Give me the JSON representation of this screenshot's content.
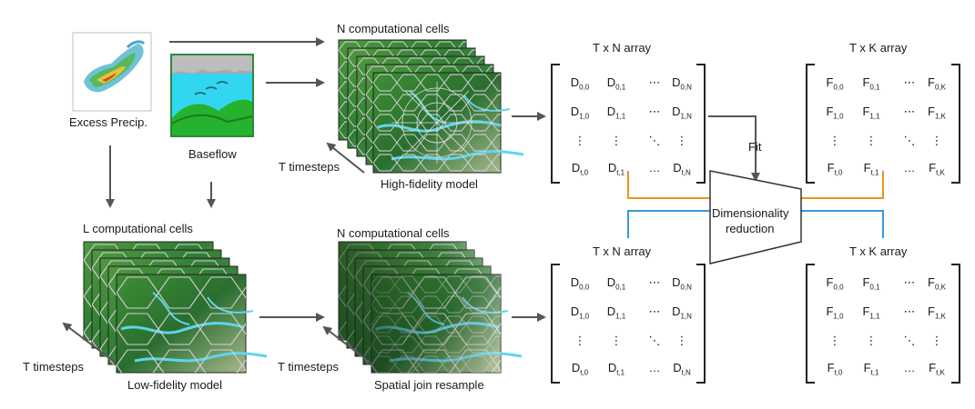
{
  "labels": {
    "excess_precip": "Excess Precip.",
    "baseflow": "Baseflow",
    "n_cells_top": "N computational cells",
    "high_fidelity": "High-fidelity model",
    "t_timesteps_top": "T timesteps",
    "l_cells": "L computational cells",
    "t_timesteps_low": "T timesteps",
    "low_fidelity": "Low-fidelity model",
    "n_cells_bottom": "N computational cells",
    "t_timesteps_resample": "T timesteps",
    "spatial_join": "Spatial join resample",
    "fit": "Fit",
    "dim_reduction_1": "Dimensionality",
    "dim_reduction_2": "reduction"
  },
  "matrices": {
    "tn_top": {
      "title": "T x N array",
      "rows": [
        [
          [
            "D",
            "0,0"
          ],
          [
            "D",
            "0,1"
          ],
          [
            "⋯",
            ""
          ],
          [
            "D",
            "0,N"
          ]
        ],
        [
          [
            "D",
            "1,0"
          ],
          [
            "D",
            "1,1"
          ],
          [
            "⋯",
            ""
          ],
          [
            "D",
            "1,N"
          ]
        ],
        [
          [
            "⋮",
            ""
          ],
          [
            "⋮",
            ""
          ],
          [
            "⋱",
            ""
          ],
          [
            "⋮",
            ""
          ]
        ],
        [
          [
            "D",
            "t,0"
          ],
          [
            "D",
            "t,1"
          ],
          [
            "…",
            ""
          ],
          [
            "D",
            "t,N"
          ]
        ]
      ]
    },
    "tk_top": {
      "title": "T x K array",
      "rows": [
        [
          [
            "F",
            "0,0"
          ],
          [
            "F",
            "0,1"
          ],
          [
            "⋯",
            ""
          ],
          [
            "F",
            "0,K"
          ]
        ],
        [
          [
            "F",
            "1,0"
          ],
          [
            "F",
            "1,1"
          ],
          [
            "⋯",
            ""
          ],
          [
            "F",
            "1,K"
          ]
        ],
        [
          [
            "⋮",
            ""
          ],
          [
            "⋮",
            ""
          ],
          [
            "⋱",
            ""
          ],
          [
            "⋮",
            ""
          ]
        ],
        [
          [
            "F",
            "t,0"
          ],
          [
            "F",
            "t,1"
          ],
          [
            "…",
            ""
          ],
          [
            "F",
            "t,K"
          ]
        ]
      ]
    },
    "tn_bottom": {
      "title": "T x N array",
      "rows": [
        [
          [
            "D",
            "0,0"
          ],
          [
            "D",
            "0,1"
          ],
          [
            "⋯",
            ""
          ],
          [
            "D",
            "0,N"
          ]
        ],
        [
          [
            "D",
            "1,0"
          ],
          [
            "D",
            "1,1"
          ],
          [
            "⋯",
            ""
          ],
          [
            "D",
            "1,N"
          ]
        ],
        [
          [
            "⋮",
            ""
          ],
          [
            "⋮",
            ""
          ],
          [
            "⋱",
            ""
          ],
          [
            "⋮",
            ""
          ]
        ],
        [
          [
            "D",
            "t,0"
          ],
          [
            "D",
            "t,1"
          ],
          [
            "…",
            ""
          ],
          [
            "D",
            "t,N"
          ]
        ]
      ]
    },
    "tk_bottom": {
      "title": "T x K array",
      "rows": [
        [
          [
            "F",
            "0,0"
          ],
          [
            "F",
            "0,1"
          ],
          [
            "⋯",
            ""
          ],
          [
            "F",
            "0,K"
          ]
        ],
        [
          [
            "F",
            "1,0"
          ],
          [
            "F",
            "1,1"
          ],
          [
            "⋯",
            ""
          ],
          [
            "F",
            "1,K"
          ]
        ],
        [
          [
            "⋮",
            ""
          ],
          [
            "⋮",
            ""
          ],
          [
            "⋱",
            ""
          ],
          [
            "⋮",
            ""
          ]
        ],
        [
          [
            "F",
            "t,0"
          ],
          [
            "F",
            "t,1"
          ],
          [
            "…",
            ""
          ],
          [
            "F",
            "t,K"
          ]
        ]
      ]
    }
  },
  "colors": {
    "arrow": "#555555",
    "orange_line": "#e8961e",
    "blue_line": "#3a9ad9",
    "terrain_green": "#2f8a3a",
    "river_cyan": "#5fd6ef",
    "cell_edge": "#c9c9c9"
  },
  "icons": [
    "precip-radar-icon",
    "baseflow-icon"
  ]
}
